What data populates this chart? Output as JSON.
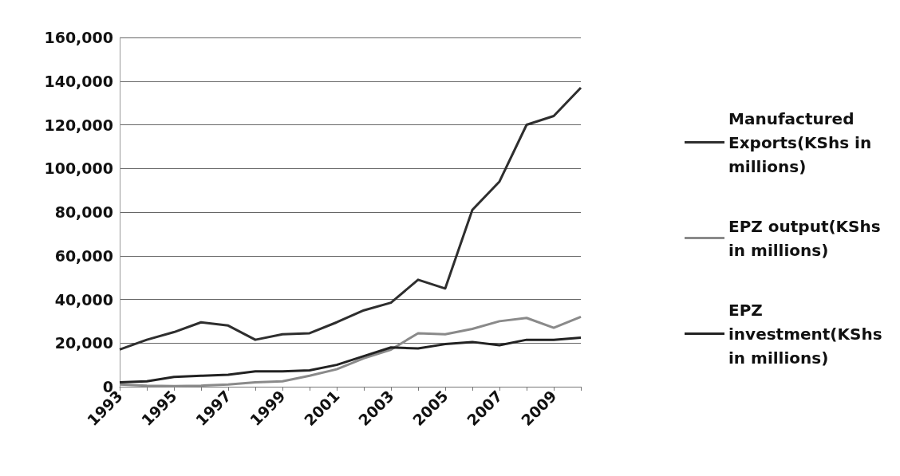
{
  "chart_data": {
    "type": "line",
    "categories": [
      "1993",
      null,
      "1995",
      null,
      "1997",
      null,
      "1999",
      null,
      "2001",
      null,
      "2003",
      null,
      "2005",
      null,
      "2007",
      null,
      "2009",
      null
    ],
    "series": [
      {
        "name": "Manufactured Exports(KShs in millions)",
        "color": "#2e2e2e",
        "values": [
          17000,
          21500,
          25000,
          29500,
          28000,
          21500,
          24000,
          24500,
          29500,
          35000,
          38500,
          49000,
          45000,
          81000,
          94000,
          120000,
          124000,
          137000
        ]
      },
      {
        "name": "EPZ output(KShs in millions)",
        "color": "#8a8a8a",
        "values": [
          1000,
          500,
          300,
          500,
          1000,
          2000,
          2500,
          5000,
          8000,
          13000,
          17000,
          24500,
          24000,
          26500,
          30000,
          31500,
          27000,
          32000
        ]
      },
      {
        "name": "EPZ investment(KShs in millions)",
        "color": "#222222",
        "values": [
          2000,
          2500,
          4500,
          5000,
          5500,
          7000,
          7000,
          7500,
          10000,
          14000,
          18000,
          17500,
          19500,
          20500,
          19000,
          21500,
          21500,
          22500
        ]
      }
    ],
    "ylim": [
      0,
      160000
    ],
    "yticks": [
      {
        "value": 0,
        "label": "0"
      },
      {
        "value": 20000,
        "label": "20,000"
      },
      {
        "value": 40000,
        "label": "40,000"
      },
      {
        "value": 60000,
        "label": "60,000"
      },
      {
        "value": 80000,
        "label": "80,000"
      },
      {
        "value": 100000,
        "label": "100,000"
      },
      {
        "value": 120000,
        "label": "120,000"
      },
      {
        "value": 140000,
        "label": "140,000"
      },
      {
        "value": 160000,
        "label": "160,000"
      }
    ],
    "grid": "y",
    "legend": "right",
    "marker": "none",
    "line_style": "solid"
  }
}
